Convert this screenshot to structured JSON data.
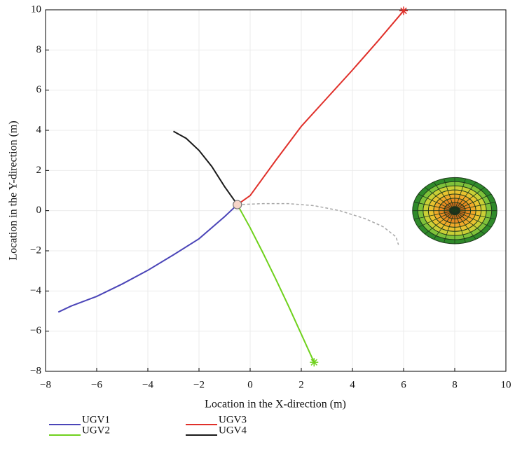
{
  "chart_data": {
    "type": "line",
    "xlabel": "Location in the X-direction (m)",
    "ylabel": "Location in the Y-direction (m)",
    "xlim": [
      -8,
      10
    ],
    "ylim": [
      -8,
      10
    ],
    "xticks": [
      {
        "value": -8,
        "label": "−8"
      },
      {
        "value": -6,
        "label": "−6"
      },
      {
        "value": -4,
        "label": "−4"
      },
      {
        "value": -2,
        "label": "−2"
      },
      0,
      2,
      4,
      6,
      8,
      10
    ],
    "yticks": [
      {
        "value": -8,
        "label": "−8"
      },
      {
        "value": -6,
        "label": "−6"
      },
      {
        "value": -4,
        "label": "−4"
      },
      {
        "value": -2,
        "label": "−2"
      },
      0,
      2,
      4,
      6,
      8,
      10
    ],
    "grid": true,
    "series": [
      {
        "name": "UGV1",
        "color": "#4b45b8",
        "x": [
          -7.5,
          -7,
          -6,
          -5,
          -4,
          -3,
          -2,
          -1,
          -0.5
        ],
        "y": [
          -5.05,
          -4.75,
          -4.27,
          -3.65,
          -2.97,
          -2.2,
          -1.4,
          -0.3,
          0.3
        ]
      },
      {
        "name": "UGV2",
        "color": "#6fd11c",
        "x": [
          -0.5,
          0,
          0.5,
          1,
          1.5,
          2,
          2.5
        ],
        "y": [
          0.3,
          -0.85,
          -2.1,
          -3.4,
          -4.75,
          -6.15,
          -7.55
        ]
      },
      {
        "name": "UGV3",
        "color": "#e0302a",
        "x": [
          -0.5,
          0,
          1,
          2,
          3,
          4,
          5,
          6
        ],
        "y": [
          0.3,
          0.75,
          2.5,
          4.2,
          5.6,
          7.0,
          8.45,
          9.95
        ]
      },
      {
        "name": "UGV4",
        "color": "#1a1a1a",
        "x": [
          -3,
          -2.5,
          -2,
          -1.5,
          -1,
          -0.5
        ],
        "y": [
          3.95,
          3.6,
          3.0,
          2.2,
          1.2,
          0.3
        ]
      },
      {
        "color": "#a8a8a8",
        "dashed": true,
        "x": [
          -0.5,
          0.5,
          1.5,
          2.5,
          3.5,
          4.5,
          5.2,
          5.7,
          5.8
        ],
        "y": [
          0.3,
          0.35,
          0.35,
          0.25,
          0,
          -0.4,
          -0.8,
          -1.3,
          -1.7
        ]
      }
    ],
    "start": {
      "x": -0.5,
      "y": 0.3
    },
    "obstacle": {
      "x": 8,
      "y": 0,
      "radius": 1.65
    }
  }
}
